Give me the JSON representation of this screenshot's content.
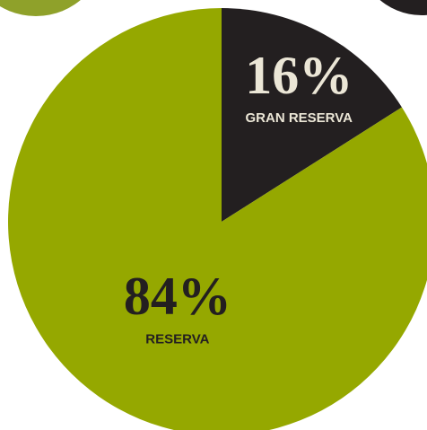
{
  "chart_data": {
    "type": "pie",
    "categories": [
      "GRAN RESERVA",
      "RESERVA"
    ],
    "values": [
      16,
      84
    ],
    "value_labels": [
      "16%",
      "84%"
    ],
    "colors": [
      "#231f20",
      "#95a800"
    ]
  }
}
